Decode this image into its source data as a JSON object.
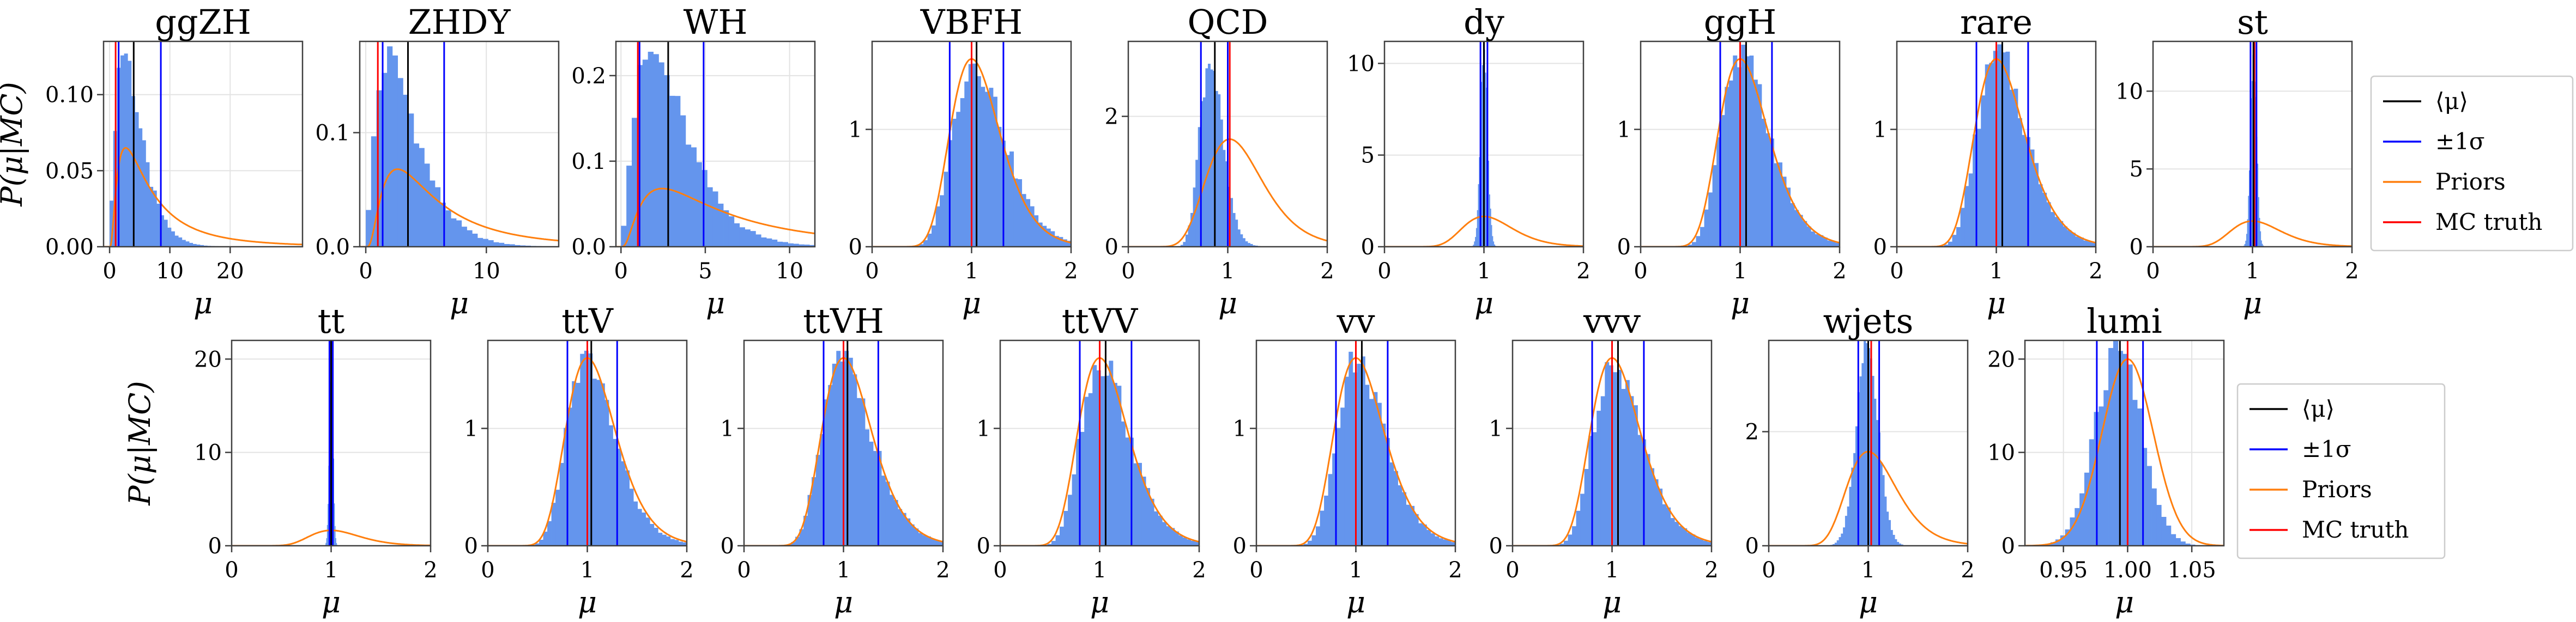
{
  "colors": {
    "hist": "#6495ed",
    "mean": "#000000",
    "sigma": "#0000ff",
    "prior": "#ff7f0e",
    "truth": "#ff0000"
  },
  "chart_data": [
    {
      "type": "histogram",
      "title": "ggZH",
      "xlabel": "μ",
      "ylabel": "P(μ|MC)",
      "xlim": [
        -1,
        32
      ],
      "ylim": [
        0,
        0.135
      ],
      "xticks": [
        0,
        10,
        20
      ],
      "xtick_labels": [
        "0",
        "10",
        "20"
      ],
      "yticks": [
        0,
        0.05,
        0.1
      ],
      "ytick_labels": [
        "0.00",
        "0.05",
        "0.10"
      ],
      "dist": {
        "kind": "gamma",
        "k": 2.3,
        "theta": 1.8,
        "bins": 30,
        "range": [
          0,
          18
        ],
        "peak": 0.13
      },
      "prior": {
        "kind": "lognormal",
        "median": 6,
        "sigma": 0.9,
        "peak": 0.065
      },
      "mean": 4,
      "sigma_lo": 1.5,
      "sigma_hi": 8.5,
      "truth": 1
    },
    {
      "type": "histogram",
      "title": "ZHDY",
      "xlabel": "μ",
      "ylabel": "",
      "xlim": [
        -0.5,
        16
      ],
      "ylim": [
        0,
        0.18
      ],
      "xticks": [
        0,
        10
      ],
      "xtick_labels": [
        "0",
        "10"
      ],
      "yticks": [
        0,
        0.1
      ],
      "ytick_labels": [
        "0.0",
        "0.1"
      ],
      "dist": {
        "kind": "gamma",
        "k": 2.3,
        "theta": 1.5,
        "bins": 34,
        "range": [
          0,
          15
        ],
        "peak": 0.165
      },
      "prior": {
        "kind": "lognormal",
        "median": 5,
        "sigma": 0.8,
        "peak": 0.068
      },
      "mean": 3.5,
      "sigma_lo": 1.4,
      "sigma_hi": 6.5,
      "truth": 1
    },
    {
      "type": "histogram",
      "title": "WH",
      "xlabel": "μ",
      "ylabel": "",
      "xlim": [
        -0.3,
        11.5
      ],
      "ylim": [
        0,
        0.24
      ],
      "xticks": [
        0,
        5,
        10
      ],
      "xtick_labels": [
        "0",
        "5",
        "10"
      ],
      "yticks": [
        0,
        0.1,
        0.2
      ],
      "ytick_labels": [
        "0.0",
        "0.1",
        "0.2"
      ],
      "dist": {
        "kind": "gamma",
        "k": 2.4,
        "theta": 1.3,
        "bins": 36,
        "range": [
          0,
          11.5
        ],
        "peak": 0.225
      },
      "prior": {
        "kind": "lognormal",
        "median": 5.5,
        "sigma": 0.9,
        "peak": 0.068
      },
      "mean": 2.8,
      "sigma_lo": 1.1,
      "sigma_hi": 4.9,
      "truth": 1
    },
    {
      "type": "histogram",
      "title": "VBFH",
      "xlabel": "μ",
      "ylabel": "",
      "xlim": [
        0,
        2
      ],
      "ylim": [
        0,
        1.75
      ],
      "xticks": [
        0,
        1,
        2
      ],
      "xtick_labels": [
        "0",
        "1",
        "2"
      ],
      "yticks": [
        0,
        1
      ],
      "ytick_labels": [
        "0",
        "1"
      ],
      "dist": {
        "kind": "lognormal",
        "mode": 1.03,
        "sigma": 0.25,
        "bins": 40,
        "range": [
          0.35,
          2
        ],
        "peak": 1.58
      },
      "prior": {
        "kind": "lognormal",
        "mode": 1,
        "sigma": 0.25,
        "peak": 1.6
      },
      "mean": 1.05,
      "sigma_lo": 0.78,
      "sigma_hi": 1.32,
      "truth": 1
    },
    {
      "type": "histogram",
      "title": "QCD",
      "xlabel": "μ",
      "ylabel": "",
      "xlim": [
        0,
        2
      ],
      "ylim": [
        0,
        3.15
      ],
      "xticks": [
        0,
        1,
        2
      ],
      "xtick_labels": [
        "0",
        "1",
        "2"
      ],
      "yticks": [
        0,
        2
      ],
      "ytick_labels": [
        "0",
        "2"
      ],
      "dist": {
        "kind": "lognormal",
        "mode": 0.82,
        "sigma": 0.14,
        "bins": 38,
        "range": [
          0.45,
          1.4
        ],
        "peak": 2.9
      },
      "prior": {
        "kind": "lognormal",
        "mode": 1.02,
        "sigma": 0.28,
        "peak": 1.65
      },
      "mean": 0.87,
      "sigma_lo": 0.73,
      "sigma_hi": 1.0,
      "truth": 1.02
    },
    {
      "type": "histogram",
      "title": "dy",
      "xlabel": "μ",
      "ylabel": "",
      "xlim": [
        0,
        2
      ],
      "ylim": [
        0,
        11.2
      ],
      "xticks": [
        0,
        1,
        2
      ],
      "xtick_labels": [
        "0",
        "1",
        "2"
      ],
      "yticks": [
        0,
        5,
        10
      ],
      "ytick_labels": [
        "0",
        "5",
        "10"
      ],
      "dist": {
        "kind": "normal",
        "mean": 1.0,
        "sigma": 0.035,
        "bins": 24,
        "range": [
          0.88,
          1.12
        ],
        "peak": 10.8
      },
      "prior": {
        "kind": "lognormal",
        "mode": 1,
        "sigma": 0.25,
        "peak": 1.65
      },
      "mean": 1.0,
      "sigma_lo": 0.965,
      "sigma_hi": 1.035,
      "truth": 1.0
    },
    {
      "type": "histogram",
      "title": "ggH",
      "xlabel": "μ",
      "ylabel": "",
      "xlim": [
        0,
        2
      ],
      "ylim": [
        0,
        1.75
      ],
      "xticks": [
        0,
        1,
        2
      ],
      "xtick_labels": [
        "0",
        "1",
        "2"
      ],
      "yticks": [
        0,
        1
      ],
      "ytick_labels": [
        "0",
        "1"
      ],
      "dist": {
        "kind": "lognormal",
        "mode": 1.02,
        "sigma": 0.24,
        "bins": 40,
        "range": [
          0.35,
          2
        ],
        "peak": 1.6
      },
      "prior": {
        "kind": "lognormal",
        "mode": 1,
        "sigma": 0.25,
        "peak": 1.6
      },
      "mean": 1.06,
      "sigma_lo": 0.8,
      "sigma_hi": 1.32,
      "truth": 1
    },
    {
      "type": "histogram",
      "title": "rare",
      "xlabel": "μ",
      "ylabel": "",
      "xlim": [
        0,
        2
      ],
      "ylim": [
        0,
        1.75
      ],
      "xticks": [
        0,
        1,
        2
      ],
      "xtick_labels": [
        "0",
        "1",
        "2"
      ],
      "yticks": [
        0,
        1
      ],
      "ytick_labels": [
        "0",
        "1"
      ],
      "dist": {
        "kind": "lognormal",
        "mode": 1.02,
        "sigma": 0.24,
        "bins": 40,
        "range": [
          0.35,
          2
        ],
        "peak": 1.62
      },
      "prior": {
        "kind": "lognormal",
        "mode": 1,
        "sigma": 0.25,
        "peak": 1.6
      },
      "mean": 1.06,
      "sigma_lo": 0.8,
      "sigma_hi": 1.32,
      "truth": 1
    },
    {
      "type": "histogram",
      "title": "st",
      "xlabel": "μ",
      "ylabel": "",
      "xlim": [
        0,
        2
      ],
      "ylim": [
        0,
        13.2
      ],
      "xticks": [
        0,
        1,
        2
      ],
      "xtick_labels": [
        "0",
        "1",
        "2"
      ],
      "yticks": [
        0,
        5,
        10
      ],
      "ytick_labels": [
        "0",
        "5",
        "10"
      ],
      "dist": {
        "kind": "normal",
        "mean": 1.01,
        "sigma": 0.03,
        "bins": 24,
        "range": [
          0.9,
          1.12
        ],
        "peak": 12.5
      },
      "prior": {
        "kind": "lognormal",
        "mode": 1,
        "sigma": 0.25,
        "peak": 1.65
      },
      "mean": 1.01,
      "sigma_lo": 0.98,
      "sigma_hi": 1.04,
      "truth": 1.02
    },
    {
      "type": "histogram",
      "title": "tt",
      "xlabel": "μ",
      "ylabel": "P(μ|MC)",
      "xlim": [
        0,
        2
      ],
      "ylim": [
        0,
        22
      ],
      "xticks": [
        0,
        1,
        2
      ],
      "xtick_labels": [
        "0",
        "1",
        "2"
      ],
      "yticks": [
        0,
        10,
        20
      ],
      "ytick_labels": [
        "0",
        "10",
        "20"
      ],
      "dist": {
        "kind": "normal",
        "mean": 1.0,
        "sigma": 0.018,
        "bins": 20,
        "range": [
          0.93,
          1.07
        ],
        "peak": 21.5
      },
      "prior": {
        "kind": "lognormal",
        "mode": 1,
        "sigma": 0.25,
        "peak": 1.65
      },
      "mean": 1.0,
      "sigma_lo": 0.983,
      "sigma_hi": 1.017,
      "truth": 1.0
    },
    {
      "type": "histogram",
      "title": "ttV",
      "xlabel": "μ",
      "ylabel": "",
      "xlim": [
        0,
        2
      ],
      "ylim": [
        0,
        1.75
      ],
      "xticks": [
        0,
        1,
        2
      ],
      "xtick_labels": [
        "0",
        "1",
        "2"
      ],
      "yticks": [
        0,
        1
      ],
      "ytick_labels": [
        "0",
        "1"
      ],
      "dist": {
        "kind": "lognormal",
        "mode": 1.0,
        "sigma": 0.24,
        "bins": 40,
        "range": [
          0.35,
          2
        ],
        "peak": 1.58
      },
      "prior": {
        "kind": "lognormal",
        "mode": 1,
        "sigma": 0.25,
        "peak": 1.6
      },
      "mean": 1.04,
      "sigma_lo": 0.8,
      "sigma_hi": 1.3,
      "truth": 1
    },
    {
      "type": "histogram",
      "title": "ttVH",
      "xlabel": "μ",
      "ylabel": "",
      "xlim": [
        0,
        2
      ],
      "ylim": [
        0,
        1.75
      ],
      "xticks": [
        0,
        1,
        2
      ],
      "xtick_labels": [
        "0",
        "1",
        "2"
      ],
      "yticks": [
        0,
        1
      ],
      "ytick_labels": [
        "0",
        "1"
      ],
      "dist": {
        "kind": "lognormal",
        "mode": 1.0,
        "sigma": 0.25,
        "bins": 40,
        "range": [
          0.35,
          2
        ],
        "peak": 1.58
      },
      "prior": {
        "kind": "lognormal",
        "mode": 1,
        "sigma": 0.25,
        "peak": 1.6
      },
      "mean": 1.04,
      "sigma_lo": 0.8,
      "sigma_hi": 1.35,
      "truth": 1
    },
    {
      "type": "histogram",
      "title": "ttVV",
      "xlabel": "μ",
      "ylabel": "",
      "xlim": [
        0,
        2
      ],
      "ylim": [
        0,
        1.75
      ],
      "xticks": [
        0,
        1,
        2
      ],
      "xtick_labels": [
        "0",
        "1",
        "2"
      ],
      "yticks": [
        0,
        1
      ],
      "ytick_labels": [
        "0",
        "1"
      ],
      "dist": {
        "kind": "lognormal",
        "mode": 1.02,
        "sigma": 0.24,
        "bins": 40,
        "range": [
          0.35,
          2
        ],
        "peak": 1.58
      },
      "prior": {
        "kind": "lognormal",
        "mode": 1,
        "sigma": 0.25,
        "peak": 1.6
      },
      "mean": 1.06,
      "sigma_lo": 0.8,
      "sigma_hi": 1.32,
      "truth": 1
    },
    {
      "type": "histogram",
      "title": "vv",
      "xlabel": "μ",
      "ylabel": "",
      "xlim": [
        0,
        2
      ],
      "ylim": [
        0,
        1.75
      ],
      "xticks": [
        0,
        1,
        2
      ],
      "xtick_labels": [
        "0",
        "1",
        "2"
      ],
      "yticks": [
        0,
        1
      ],
      "ytick_labels": [
        "0",
        "1"
      ],
      "dist": {
        "kind": "lognormal",
        "mode": 1.02,
        "sigma": 0.24,
        "bins": 40,
        "range": [
          0.35,
          2
        ],
        "peak": 1.58
      },
      "prior": {
        "kind": "lognormal",
        "mode": 1,
        "sigma": 0.25,
        "peak": 1.6
      },
      "mean": 1.06,
      "sigma_lo": 0.8,
      "sigma_hi": 1.32,
      "truth": 1
    },
    {
      "type": "histogram",
      "title": "vvv",
      "xlabel": "μ",
      "ylabel": "",
      "xlim": [
        0,
        2
      ],
      "ylim": [
        0,
        1.75
      ],
      "xticks": [
        0,
        1,
        2
      ],
      "xtick_labels": [
        "0",
        "1",
        "2"
      ],
      "yticks": [
        0,
        1
      ],
      "ytick_labels": [
        "0",
        "1"
      ],
      "dist": {
        "kind": "lognormal",
        "mode": 1.02,
        "sigma": 0.24,
        "bins": 40,
        "range": [
          0.35,
          2
        ],
        "peak": 1.58
      },
      "prior": {
        "kind": "lognormal",
        "mode": 1,
        "sigma": 0.25,
        "peak": 1.6
      },
      "mean": 1.06,
      "sigma_lo": 0.8,
      "sigma_hi": 1.32,
      "truth": 1
    },
    {
      "type": "histogram",
      "title": "wjets",
      "xlabel": "μ",
      "ylabel": "",
      "xlim": [
        0,
        2
      ],
      "ylim": [
        0,
        3.6
      ],
      "xticks": [
        0,
        1,
        2
      ],
      "xtick_labels": [
        "0",
        "1",
        "2"
      ],
      "yticks": [
        0,
        2
      ],
      "ytick_labels": [
        "0",
        "2"
      ],
      "dist": {
        "kind": "normal",
        "mean": 0.99,
        "sigma": 0.11,
        "bins": 36,
        "range": [
          0.6,
          1.35
        ],
        "peak": 3.4
      },
      "prior": {
        "kind": "lognormal",
        "mode": 1,
        "sigma": 0.25,
        "peak": 1.65
      },
      "mean": 1.0,
      "sigma_lo": 0.9,
      "sigma_hi": 1.11,
      "truth": 1.03
    },
    {
      "type": "histogram",
      "title": "lumi",
      "xlabel": "μ",
      "ylabel": "",
      "xlim": [
        0.92,
        1.075
      ],
      "ylim": [
        0,
        22
      ],
      "xticks": [
        0.95,
        1.0,
        1.05
      ],
      "xtick_labels": [
        "0.95",
        "1.00",
        "1.05"
      ],
      "yticks": [
        0,
        10,
        20
      ],
      "ytick_labels": [
        "0",
        "10",
        "20"
      ],
      "dist": {
        "kind": "normal",
        "mean": 0.993,
        "sigma": 0.018,
        "bins": 40,
        "range": [
          0.925,
          1.075
        ],
        "peak": 21
      },
      "prior": {
        "kind": "normal",
        "mean": 1.0,
        "sigma": 0.02,
        "peak": 20
      },
      "mean": 0.994,
      "sigma_lo": 0.976,
      "sigma_hi": 1.012,
      "truth": 1.0
    }
  ],
  "legends": [
    {
      "entries": [
        {
          "key": "mean",
          "label": "⟨μ⟩"
        },
        {
          "key": "sigma",
          "label": "±1σ"
        },
        {
          "key": "prior",
          "label": "Priors"
        },
        {
          "key": "truth",
          "label": "MC truth"
        }
      ]
    },
    {
      "entries": [
        {
          "key": "mean",
          "label": "⟨μ⟩"
        },
        {
          "key": "sigma",
          "label": "±1σ"
        },
        {
          "key": "prior",
          "label": "Priors"
        },
        {
          "key": "truth",
          "label": "MC truth"
        }
      ]
    }
  ]
}
